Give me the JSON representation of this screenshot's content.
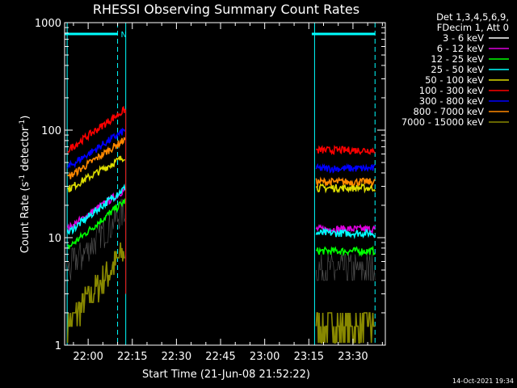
{
  "chart_data": {
    "type": "line",
    "title": "RHESSI Observing Summary Count Rates",
    "xlabel": "Start Time (21-Jun-08 21:52:22)",
    "ylabel_main": "Count Rate (s",
    "ylabel_sup1": "-1",
    "ylabel_mid": " detector",
    "ylabel_sup2": "-1",
    "ylabel_end": ")",
    "yscale": "log",
    "ylim": [
      1,
      1000
    ],
    "xlim_minutes": [
      -8,
      101
    ],
    "x_ticks": [
      {
        "m": 0,
        "label": "22:00"
      },
      {
        "m": 15,
        "label": "22:15"
      },
      {
        "m": 30,
        "label": "22:30"
      },
      {
        "m": 45,
        "label": "22:45"
      },
      {
        "m": 60,
        "label": "23:00"
      },
      {
        "m": 75,
        "label": "23:15"
      },
      {
        "m": 90,
        "label": "23:30"
      }
    ],
    "y_ticks": [
      {
        "v": 1,
        "label": "1"
      },
      {
        "v": 10,
        "label": "10"
      },
      {
        "v": 100,
        "label": "100"
      },
      {
        "v": 1000,
        "label": "1000"
      }
    ],
    "legend_header": [
      "Det 1,3,4,5,6,9,",
      "FDecim 1, Att 0"
    ],
    "series": [
      {
        "name": "3 - 6 keV",
        "color": "#000000",
        "seg1": [
          5,
          18
        ],
        "seg2": [
          5,
          5
        ]
      },
      {
        "name": "6 - 12 keV",
        "color": "#dd00dd",
        "seg1": [
          12,
          28
        ],
        "seg2": [
          12,
          12
        ]
      },
      {
        "name": "12 - 25 keV",
        "color": "#00ff00",
        "seg1": [
          8,
          22
        ],
        "seg2": [
          7.5,
          7.5
        ]
      },
      {
        "name": "25 - 50 keV",
        "color": "#00ffff",
        "seg1": [
          11,
          29
        ],
        "seg2": [
          11,
          11
        ]
      },
      {
        "name": "50 - 100 keV",
        "color": "#dddd00",
        "seg1": [
          28,
          57
        ],
        "seg2": [
          29,
          29
        ]
      },
      {
        "name": "100 - 300 keV",
        "color": "#ff0000",
        "seg1": [
          65,
          155
        ],
        "seg2": [
          65,
          65
        ]
      },
      {
        "name": "300 - 800 keV",
        "color": "#0000ff",
        "seg1": [
          45,
          100
        ],
        "seg2": [
          44,
          44
        ]
      },
      {
        "name": "800 - 7000 keV",
        "color": "#ff8800",
        "seg1": [
          36,
          82
        ],
        "seg2": [
          33,
          33
        ]
      },
      {
        "name": "7000 - 15000 keV",
        "color": "#888800",
        "seg1": [
          1.5,
          7.5
        ],
        "seg2": [
          1.5,
          1.5
        ]
      }
    ],
    "segments_minutes": [
      [
        -7,
        12.5
      ],
      [
        77.5,
        97.5
      ]
    ],
    "flare_bars": [
      {
        "from_m": -8,
        "to_m": 10,
        "letter": "N"
      },
      {
        "from_m": 76,
        "to_m": 97.5,
        "letter": ""
      }
    ],
    "timestamp": "14-Oct-2021 19:34"
  }
}
